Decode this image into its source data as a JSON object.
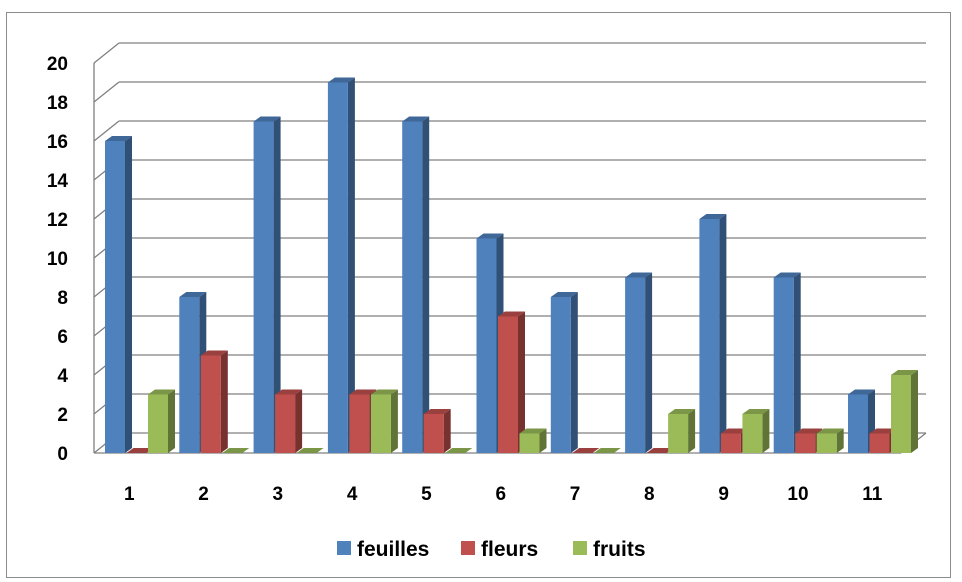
{
  "chart_data": {
    "type": "bar",
    "title": "",
    "xlabel": "",
    "ylabel": "",
    "categories": [
      "1",
      "2",
      "3",
      "4",
      "5",
      "6",
      "7",
      "8",
      "9",
      "10",
      "11"
    ],
    "series": [
      {
        "name": "feuilles",
        "color": "#4F81BD",
        "values": [
          16,
          8,
          17,
          19,
          17,
          11,
          8,
          9,
          12,
          9,
          3
        ]
      },
      {
        "name": "fleurs",
        "color": "#C0504D",
        "values": [
          0,
          5,
          3,
          3,
          2,
          7,
          0,
          0,
          1,
          1,
          1
        ]
      },
      {
        "name": "fruits",
        "color": "#9BBB59",
        "values": [
          3,
          0,
          0,
          3,
          0,
          1,
          0,
          2,
          2,
          1,
          4
        ]
      }
    ],
    "ylim": [
      0,
      20
    ],
    "yticks": [
      "0",
      "2",
      "4",
      "6",
      "8",
      "10",
      "12",
      "14",
      "16",
      "18",
      "20"
    ],
    "grid": true,
    "legend_position": "bottom",
    "style": "3d-clustered-column"
  }
}
